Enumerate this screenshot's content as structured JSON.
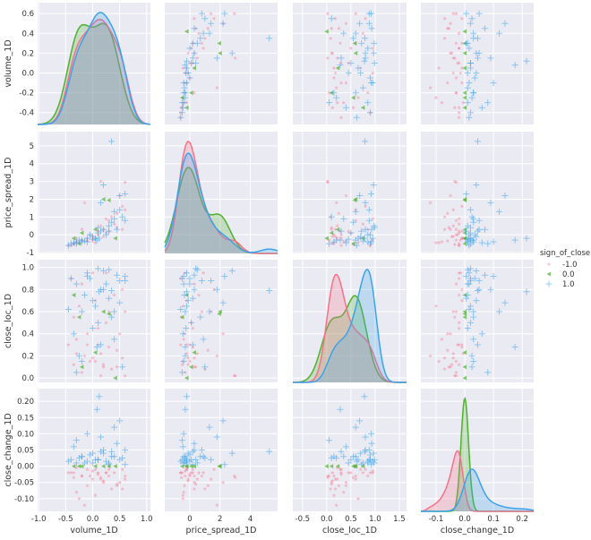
{
  "chart_data": {
    "type": "pairplot",
    "variables": [
      "volume_1D",
      "price_spread_1D",
      "close_loc_1D",
      "close_change_1D"
    ],
    "limits": {
      "volume_1D": [
        -1.02,
        1.07
      ],
      "price_spread_1D": [
        -1.65,
        5.8
      ],
      "close_loc_1D": [
        -0.7,
        1.65
      ],
      "close_change_1D": [
        -0.153,
        0.24
      ]
    },
    "row_limits": {
      "volume_1D": [
        -0.52,
        0.71
      ],
      "price_spread_1D": [
        -1.05,
        5.8
      ],
      "close_loc_1D": [
        -0.04,
        1.07
      ],
      "close_change_1D": [
        -0.139,
        0.239
      ]
    },
    "x_ticks": {
      "volume_1D": [
        "-1.0",
        "-0.5",
        "0.0",
        "0.5",
        "1.0"
      ],
      "price_spread_1D": [
        "0",
        "2",
        "4"
      ],
      "close_loc_1D": [
        "-0.5",
        "0.0",
        "0.5",
        "1.0",
        "1.5"
      ],
      "close_change_1D": [
        "-0.1",
        "0.0",
        "0.1",
        "0.2"
      ]
    },
    "y_ticks": {
      "volume_1D": [
        "-0.4",
        "-0.2",
        "0.0",
        "0.2",
        "0.4",
        "0.6"
      ],
      "price_spread_1D": [
        "-1",
        "0",
        "1",
        "2",
        "3",
        "4",
        "5"
      ],
      "close_loc_1D": [
        "0.0",
        "0.2",
        "0.4",
        "0.6",
        "0.8",
        "1.0"
      ],
      "close_change_1D": [
        "-0.10",
        "-0.05",
        "0.00",
        "0.05",
        "0.10",
        "0.15",
        "0.20"
      ]
    },
    "diagonal": "kde",
    "grid": true,
    "hue": "sign_of_close",
    "legend": {
      "title": "sign_of_close",
      "placement": "right",
      "entries": [
        {
          "label": "-1.0",
          "color": "#f77189",
          "marker": "star"
        },
        {
          "label": "0.0",
          "color": "#50b131",
          "marker": "triangle-left"
        },
        {
          "label": "1.0",
          "color": "#3ba3ec",
          "marker": "plus"
        }
      ]
    },
    "colors": {
      "background": "#eaeaf2",
      "grid": "#ffffff"
    },
    "rows_columns": [
      "volume_1D",
      "price_spread_1D",
      "close_loc_1D",
      "close_change_1D",
      "sign_of_close"
    ],
    "rows": [
      [
        -0.35,
        -0.5,
        0.12,
        -0.02,
        -1
      ],
      [
        -0.2,
        -0.3,
        0.05,
        -0.03,
        -1
      ],
      [
        -0.1,
        -0.2,
        0.3,
        -0.01,
        -1
      ],
      [
        0.0,
        -0.1,
        0.18,
        -0.04,
        -1
      ],
      [
        0.1,
        0.2,
        0.45,
        -0.02,
        -1
      ],
      [
        0.2,
        0.3,
        0.1,
        -0.05,
        -1
      ],
      [
        0.3,
        0.8,
        0.6,
        -0.03,
        -1
      ],
      [
        0.45,
        1.2,
        0.25,
        -0.06,
        -1
      ],
      [
        0.55,
        1.6,
        0.8,
        -0.01,
        -1
      ],
      [
        -0.4,
        -0.6,
        0.9,
        -0.02,
        -1
      ],
      [
        -0.3,
        -0.4,
        0.35,
        -0.08,
        -1
      ],
      [
        -0.05,
        0.0,
        0.15,
        -0.03,
        -1
      ],
      [
        0.05,
        -0.2,
        0.7,
        -0.01,
        -1
      ],
      [
        0.15,
        0.5,
        0.22,
        -0.04,
        -1
      ],
      [
        0.25,
        0.1,
        0.5,
        -0.02,
        -1
      ],
      [
        0.35,
        1.0,
        0.08,
        -0.07,
        -1
      ],
      [
        0.5,
        2.2,
        0.4,
        -0.05,
        -1
      ],
      [
        0.6,
        2.95,
        0.02,
        -0.03,
        -1
      ],
      [
        -0.25,
        -0.45,
        0.65,
        -0.1,
        -1
      ],
      [
        -0.15,
        1.8,
        0.2,
        -0.12,
        -1
      ],
      [
        0.0,
        -0.3,
        0.95,
        -0.015,
        -1
      ],
      [
        0.1,
        0.0,
        0.3,
        -0.025,
        -1
      ],
      [
        -0.35,
        -0.55,
        0.55,
        -0.035,
        -1
      ],
      [
        0.2,
        -0.1,
        0.12,
        -0.045,
        -1
      ],
      [
        0.4,
        0.6,
        0.75,
        -0.02,
        -1
      ],
      [
        -0.1,
        -0.35,
        0.4,
        -0.06,
        -1
      ],
      [
        0.3,
        0.2,
        0.28,
        -0.01,
        -1
      ],
      [
        -0.2,
        0.3,
        0.85,
        -0.03,
        -1
      ],
      [
        0.05,
        -0.45,
        0.15,
        -0.09,
        -1
      ],
      [
        0.6,
        1.4,
        0.6,
        -0.04,
        -1
      ],
      [
        -0.45,
        -0.6,
        0.3,
        -0.02,
        -1
      ],
      [
        0.15,
        3.0,
        0.02,
        -0.035,
        -1
      ],
      [
        0.45,
        0.4,
        0.1,
        -0.055,
        -1
      ],
      [
        -0.3,
        -0.2,
        0.22,
        -0.005,
        -1
      ],
      [
        0.25,
        0.9,
        0.95,
        -0.02,
        -1
      ],
      [
        0.55,
        0.3,
        0.18,
        -0.07,
        -1
      ],
      [
        -0.4,
        -0.5,
        0.9,
        0.02,
        1
      ],
      [
        -0.3,
        -0.4,
        0.85,
        0.01,
        1
      ],
      [
        -0.2,
        -0.3,
        0.6,
        0.03,
        1
      ],
      [
        -0.1,
        -0.2,
        0.95,
        0.015,
        1
      ],
      [
        0.0,
        -0.1,
        0.7,
        0.04,
        1
      ],
      [
        0.1,
        0.1,
        0.5,
        0.02,
        1
      ],
      [
        0.2,
        0.3,
        0.8,
        0.05,
        1
      ],
      [
        0.3,
        0.5,
        0.98,
        0.01,
        1
      ],
      [
        0.4,
        0.9,
        0.35,
        0.03,
        1
      ],
      [
        0.5,
        1.4,
        0.88,
        0.02,
        1
      ],
      [
        0.6,
        2.3,
        0.92,
        0.005,
        1
      ],
      [
        -0.35,
        -0.45,
        0.4,
        0.06,
        1
      ],
      [
        -0.25,
        -0.3,
        0.2,
        0.025,
        1
      ],
      [
        -0.15,
        -0.35,
        0.75,
        0.01,
        1
      ],
      [
        -0.05,
        0.0,
        0.9,
        0.035,
        1
      ],
      [
        0.05,
        -0.2,
        0.65,
        0.02,
        1
      ],
      [
        0.15,
        0.2,
        0.3,
        0.045,
        1
      ],
      [
        0.25,
        0.0,
        0.85,
        0.015,
        1
      ],
      [
        0.35,
        0.7,
        0.55,
        0.03,
        1
      ],
      [
        0.45,
        0.3,
        0.93,
        0.07,
        1
      ],
      [
        0.55,
        1.0,
        0.1,
        0.025,
        1
      ],
      [
        0.35,
        5.25,
        0.79,
        0.045,
        1
      ],
      [
        0.12,
        -0.2,
        0.78,
        0.215,
        1
      ],
      [
        0.08,
        -0.3,
        0.28,
        0.175,
        1
      ],
      [
        0.5,
        2.2,
        0.68,
        0.14,
        1
      ],
      [
        0.4,
        1.3,
        0.6,
        0.12,
        1
      ],
      [
        -0.1,
        -0.4,
        0.92,
        0.1,
        1
      ],
      [
        -0.3,
        -0.5,
        0.05,
        0.08,
        1
      ],
      [
        0.2,
        2.8,
        0.97,
        0.04,
        1
      ],
      [
        0.0,
        -0.25,
        0.45,
        0.01,
        1
      ],
      [
        0.1,
        0.4,
        0.99,
        0.02,
        1
      ],
      [
        -0.2,
        -0.4,
        0.15,
        0.03,
        1
      ],
      [
        0.3,
        0.2,
        0.72,
        0.005,
        1
      ],
      [
        0.6,
        0.8,
        0.88,
        0.05,
        1
      ],
      [
        -0.45,
        -0.6,
        0.62,
        0.015,
        1
      ],
      [
        0.15,
        1.8,
        0.8,
        0.09,
        1
      ],
      [
        -0.35,
        -0.2,
        0.75,
        0,
        0
      ],
      [
        0.3,
        1.95,
        0.58,
        0,
        0
      ],
      [
        0.42,
        -0.2,
        0.0,
        0,
        0
      ],
      [
        0.05,
        0.3,
        0.23,
        0,
        0
      ],
      [
        -0.2,
        0.1,
        0.1,
        0,
        0
      ],
      [
        0.2,
        2.0,
        0.6,
        0,
        0
      ],
      [
        -0.25,
        -0.5,
        0.55,
        0,
        0
      ]
    ]
  }
}
